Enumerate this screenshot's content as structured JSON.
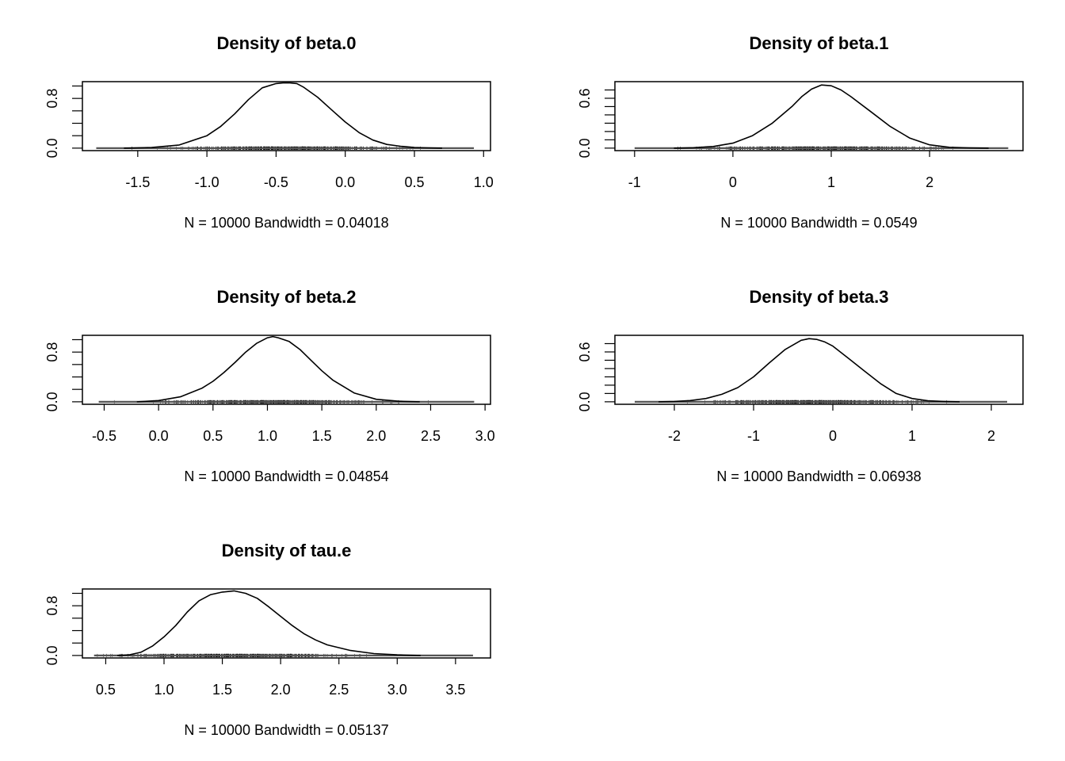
{
  "chart_data": [
    {
      "type": "line",
      "title": "Density of beta.0",
      "subtitle": "N = 10000   Bandwidth = 0.04018",
      "x_range": [
        -1.8,
        0.93
      ],
      "xlim": [
        -1.9,
        1.05
      ],
      "ylim": [
        -0.04,
        1.07
      ],
      "x_ticks": [
        -1.5,
        -1.0,
        -0.5,
        0.0,
        0.5,
        1.0
      ],
      "x_tick_labels": [
        "-1.5",
        "-1.0",
        "-0.5",
        "0.0",
        "0.5",
        "1.0"
      ],
      "y_ticks": [
        0.0,
        0.2,
        0.4,
        0.6,
        0.8,
        1.0
      ],
      "y_tick_labels": [
        "0.0",
        "",
        "",
        "",
        "0.8",
        ""
      ],
      "x": [
        -1.6,
        -1.4,
        -1.2,
        -1.0,
        -0.9,
        -0.8,
        -0.7,
        -0.6,
        -0.5,
        -0.45,
        -0.4,
        -0.35,
        -0.3,
        -0.2,
        -0.1,
        0.0,
        0.1,
        0.2,
        0.3,
        0.4,
        0.5,
        0.6,
        0.7
      ],
      "y": [
        0.0,
        0.01,
        0.05,
        0.2,
        0.35,
        0.55,
        0.78,
        0.97,
        1.04,
        1.05,
        1.05,
        1.04,
        0.98,
        0.82,
        0.62,
        0.42,
        0.25,
        0.13,
        0.06,
        0.03,
        0.01,
        0.005,
        0.0
      ]
    },
    {
      "type": "line",
      "title": "Density of beta.1",
      "subtitle": "N = 10000   Bandwidth = 0.0549",
      "x_range": [
        -1.0,
        2.8
      ],
      "xlim": [
        -1.2,
        2.95
      ],
      "ylim": [
        -0.03,
        0.8
      ],
      "x_ticks": [
        -1,
        0,
        1,
        2
      ],
      "x_tick_labels": [
        "-1",
        "0",
        "1",
        "2"
      ],
      "y_ticks": [
        0.0,
        0.1,
        0.2,
        0.3,
        0.4,
        0.5,
        0.6,
        0.7
      ],
      "y_tick_labels": [
        "0.0",
        "",
        "",
        "",
        "",
        "",
        "0.6",
        ""
      ],
      "x": [
        -0.6,
        -0.4,
        -0.2,
        0.0,
        0.2,
        0.4,
        0.6,
        0.7,
        0.8,
        0.9,
        1.0,
        1.1,
        1.2,
        1.4,
        1.6,
        1.8,
        2.0,
        2.2,
        2.4,
        2.6
      ],
      "y": [
        0.0,
        0.005,
        0.02,
        0.06,
        0.15,
        0.3,
        0.5,
        0.62,
        0.71,
        0.76,
        0.75,
        0.7,
        0.62,
        0.44,
        0.26,
        0.12,
        0.04,
        0.01,
        0.003,
        0.0
      ]
    },
    {
      "type": "line",
      "title": "Density of beta.2",
      "subtitle": "N = 10000   Bandwidth = 0.04854",
      "x_range": [
        -0.55,
        2.9
      ],
      "xlim": [
        -0.7,
        3.05
      ],
      "ylim": [
        -0.04,
        1.07
      ],
      "x_ticks": [
        -0.5,
        0.0,
        0.5,
        1.0,
        1.5,
        2.0,
        2.5,
        3.0
      ],
      "x_tick_labels": [
        "-0.5",
        "0.0",
        "0.5",
        "1.0",
        "1.5",
        "2.0",
        "2.5",
        "3.0"
      ],
      "y_ticks": [
        0.0,
        0.2,
        0.4,
        0.6,
        0.8,
        1.0
      ],
      "y_tick_labels": [
        "0.0",
        "",
        "",
        "",
        "0.8",
        ""
      ],
      "x": [
        -0.2,
        0.0,
        0.2,
        0.4,
        0.5,
        0.6,
        0.7,
        0.8,
        0.9,
        1.0,
        1.05,
        1.1,
        1.2,
        1.3,
        1.4,
        1.5,
        1.6,
        1.8,
        2.0,
        2.2,
        2.4
      ],
      "y": [
        0.0,
        0.02,
        0.08,
        0.22,
        0.33,
        0.47,
        0.63,
        0.8,
        0.94,
        1.03,
        1.05,
        1.03,
        0.97,
        0.84,
        0.67,
        0.5,
        0.35,
        0.14,
        0.04,
        0.01,
        0.0
      ]
    },
    {
      "type": "line",
      "title": "Density of beta.3",
      "subtitle": "N = 10000   Bandwidth = 0.06938",
      "x_range": [
        -2.5,
        2.2
      ],
      "xlim": [
        -2.75,
        2.4
      ],
      "ylim": [
        -0.03,
        0.8
      ],
      "x_ticks": [
        -2,
        -1,
        0,
        1,
        2
      ],
      "x_tick_labels": [
        "-2",
        "-1",
        "0",
        "1",
        "2"
      ],
      "y_ticks": [
        0.0,
        0.1,
        0.2,
        0.3,
        0.4,
        0.5,
        0.6,
        0.7
      ],
      "y_tick_labels": [
        "0.0",
        "",
        "",
        "",
        "",
        "",
        "0.6",
        ""
      ],
      "x": [
        -2.2,
        -2.0,
        -1.8,
        -1.6,
        -1.4,
        -1.2,
        -1.0,
        -0.8,
        -0.6,
        -0.4,
        -0.3,
        -0.2,
        -0.1,
        0.0,
        0.2,
        0.4,
        0.6,
        0.8,
        1.0,
        1.2,
        1.4,
        1.6
      ],
      "y": [
        0.0,
        0.004,
        0.015,
        0.04,
        0.09,
        0.17,
        0.3,
        0.47,
        0.63,
        0.74,
        0.76,
        0.75,
        0.72,
        0.67,
        0.52,
        0.37,
        0.22,
        0.1,
        0.04,
        0.012,
        0.004,
        0.0
      ]
    },
    {
      "type": "line",
      "title": "Density of tau.e",
      "subtitle": "N = 10000   Bandwidth = 0.05137",
      "x_range": [
        0.4,
        3.65
      ],
      "xlim": [
        0.3,
        3.8
      ],
      "ylim": [
        -0.04,
        1.07
      ],
      "x_ticks": [
        0.5,
        1.0,
        1.5,
        2.0,
        2.5,
        3.0,
        3.5
      ],
      "x_tick_labels": [
        "0.5",
        "1.0",
        "1.5",
        "2.0",
        "2.5",
        "3.0",
        "3.5"
      ],
      "y_ticks": [
        0.0,
        0.2,
        0.4,
        0.6,
        0.8,
        1.0
      ],
      "y_tick_labels": [
        "0.0",
        "",
        "",
        "",
        "0.8",
        ""
      ],
      "x": [
        0.6,
        0.7,
        0.8,
        0.9,
        1.0,
        1.1,
        1.2,
        1.3,
        1.4,
        1.5,
        1.6,
        1.7,
        1.8,
        1.9,
        2.0,
        2.1,
        2.2,
        2.3,
        2.4,
        2.6,
        2.8,
        3.0,
        3.2
      ],
      "y": [
        0.0,
        0.01,
        0.05,
        0.15,
        0.3,
        0.48,
        0.7,
        0.88,
        0.98,
        1.02,
        1.04,
        1.0,
        0.92,
        0.78,
        0.63,
        0.48,
        0.35,
        0.25,
        0.17,
        0.08,
        0.03,
        0.01,
        0.0
      ]
    }
  ]
}
